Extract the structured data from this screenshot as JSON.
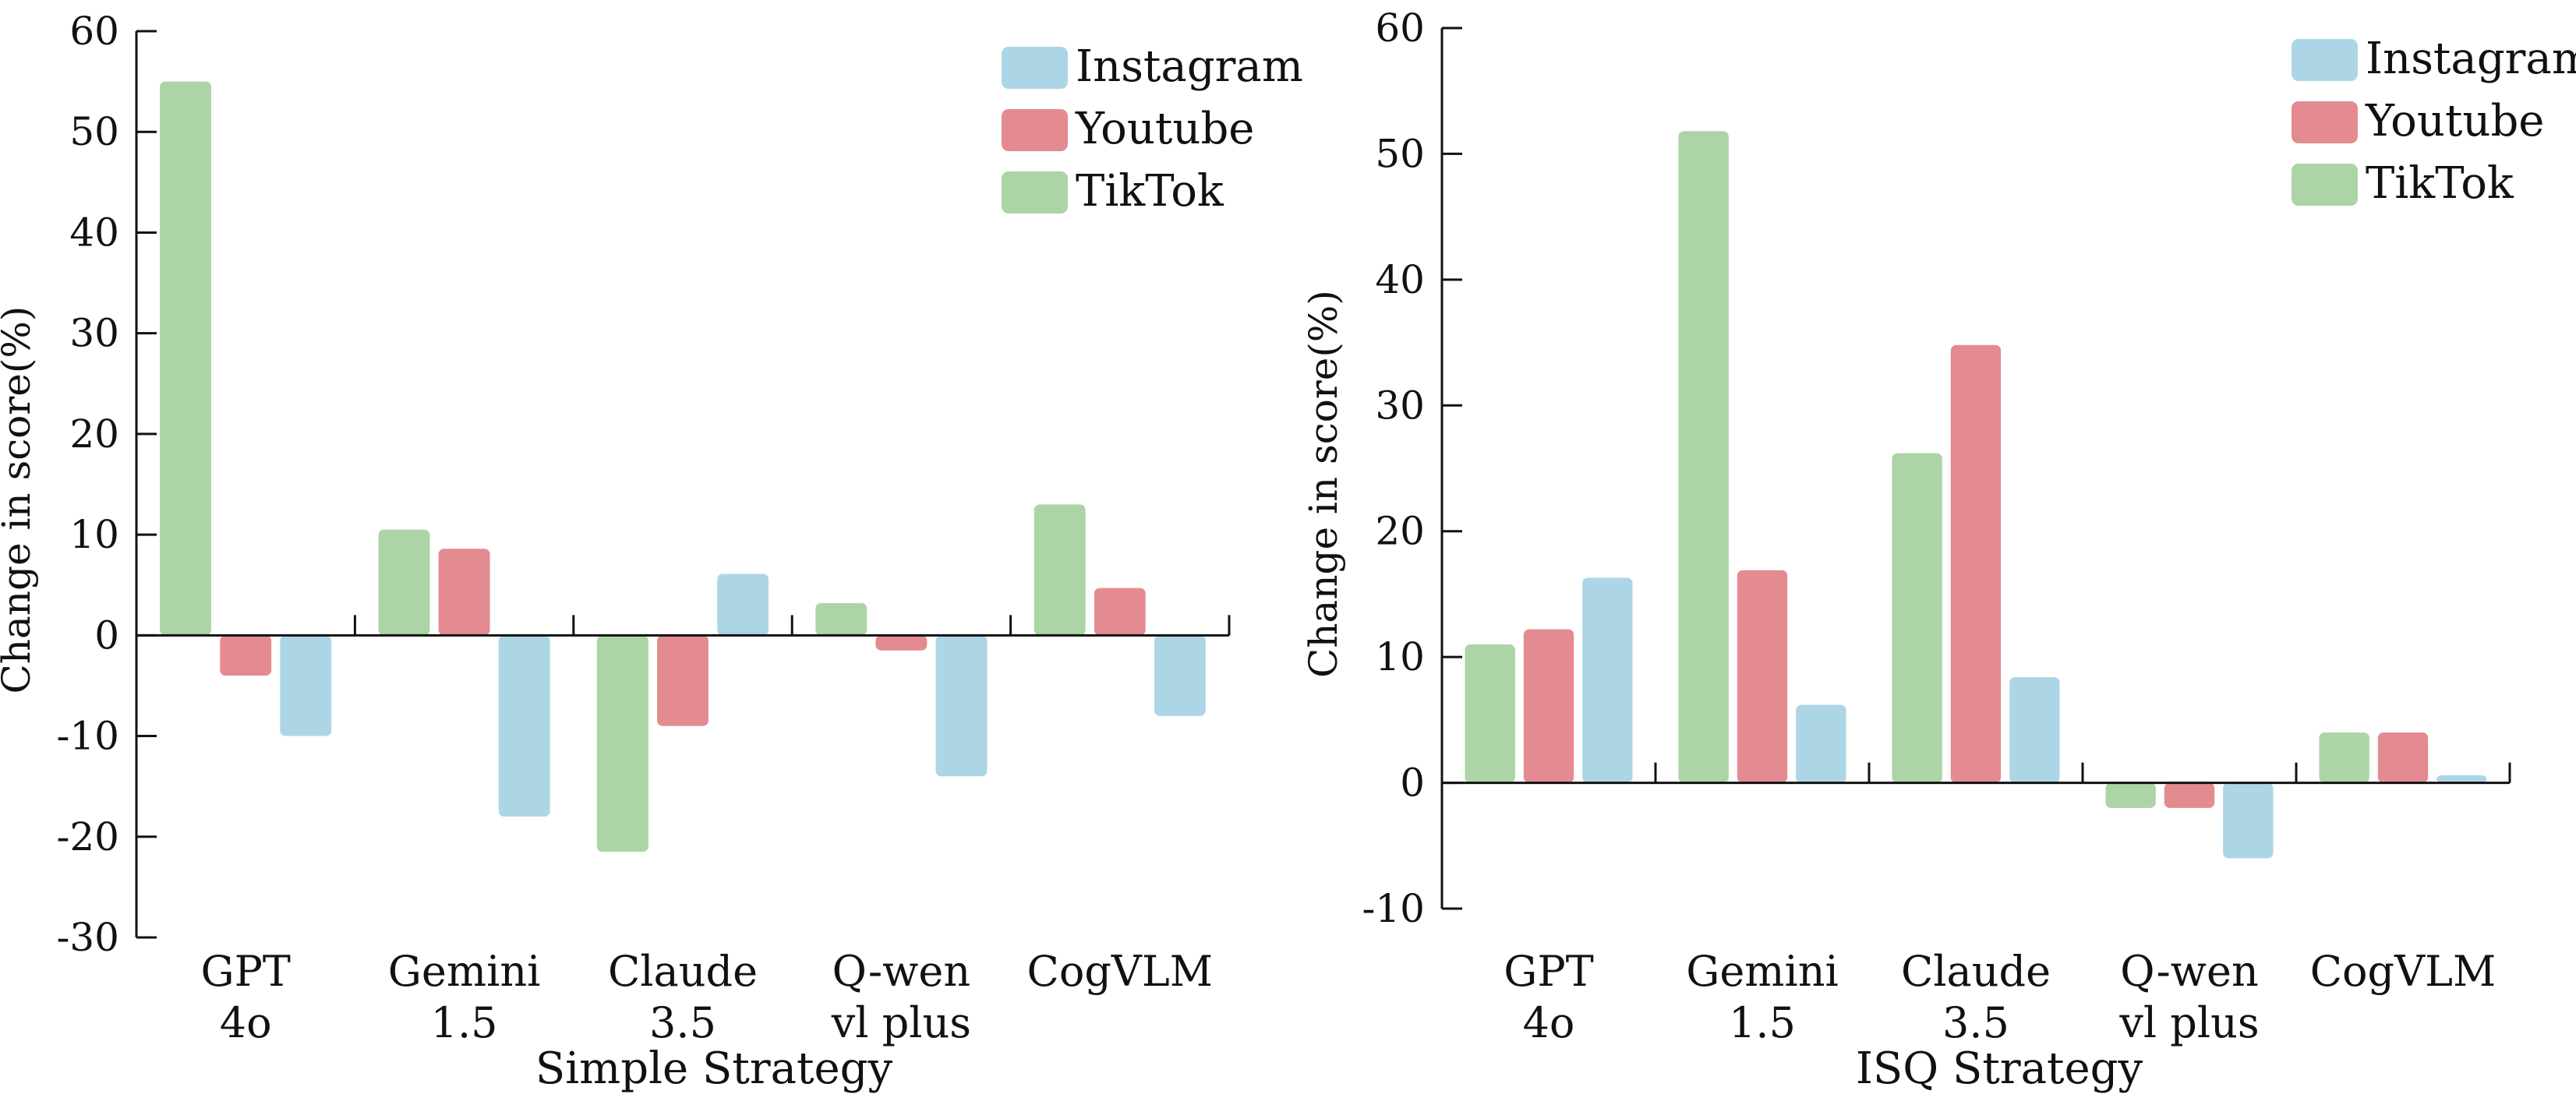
{
  "colors": {
    "Instagram": "#acd6e6",
    "Youtube": "#e38b90",
    "TikTok": "#acd4a6",
    "axis": "#111111"
  },
  "legend": [
    "Instagram",
    "Youtube",
    "TikTok"
  ],
  "chart_data": [
    {
      "type": "bar",
      "title": "",
      "xlabel": "Simple Strategy",
      "ylabel": "Change in score(%)",
      "ylim": [
        -30,
        60
      ],
      "yticks": [
        -30,
        -20,
        -10,
        0,
        10,
        20,
        30,
        40,
        50,
        60
      ],
      "categories": [
        [
          "GPT",
          "4o"
        ],
        [
          "Gemini",
          "1.5"
        ],
        [
          "Claude",
          "3.5"
        ],
        [
          "Q-wen",
          "vl plus"
        ],
        [
          "CogVLM"
        ]
      ],
      "legend_position": "top-right",
      "series": [
        {
          "name": "TikTok",
          "values": [
            55,
            10.5,
            -21.5,
            3.2,
            13
          ]
        },
        {
          "name": "Youtube",
          "values": [
            -4,
            8.6,
            -9,
            -1.5,
            4.7
          ]
        },
        {
          "name": "Instagram",
          "values": [
            -10,
            -18,
            6.1,
            -14,
            -8
          ]
        }
      ]
    },
    {
      "type": "bar",
      "title": "",
      "xlabel": "ISQ Strategy",
      "ylabel": "Change in score(%)",
      "ylim": [
        -10,
        60
      ],
      "yticks": [
        -10,
        0,
        10,
        20,
        30,
        40,
        50,
        60
      ],
      "categories": [
        [
          "GPT",
          "4o"
        ],
        [
          "Gemini",
          "1.5"
        ],
        [
          "Claude",
          "3.5"
        ],
        [
          "Q-wen",
          "vl plus"
        ],
        [
          "CogVLM"
        ]
      ],
      "legend_position": "top-right",
      "series": [
        {
          "name": "TikTok",
          "values": [
            11,
            51.8,
            26.2,
            -2,
            4
          ]
        },
        {
          "name": "Youtube",
          "values": [
            12.2,
            16.9,
            34.8,
            -2,
            4
          ]
        },
        {
          "name": "Instagram",
          "values": [
            16.3,
            6.2,
            8.4,
            -6,
            0.6
          ]
        }
      ]
    }
  ]
}
